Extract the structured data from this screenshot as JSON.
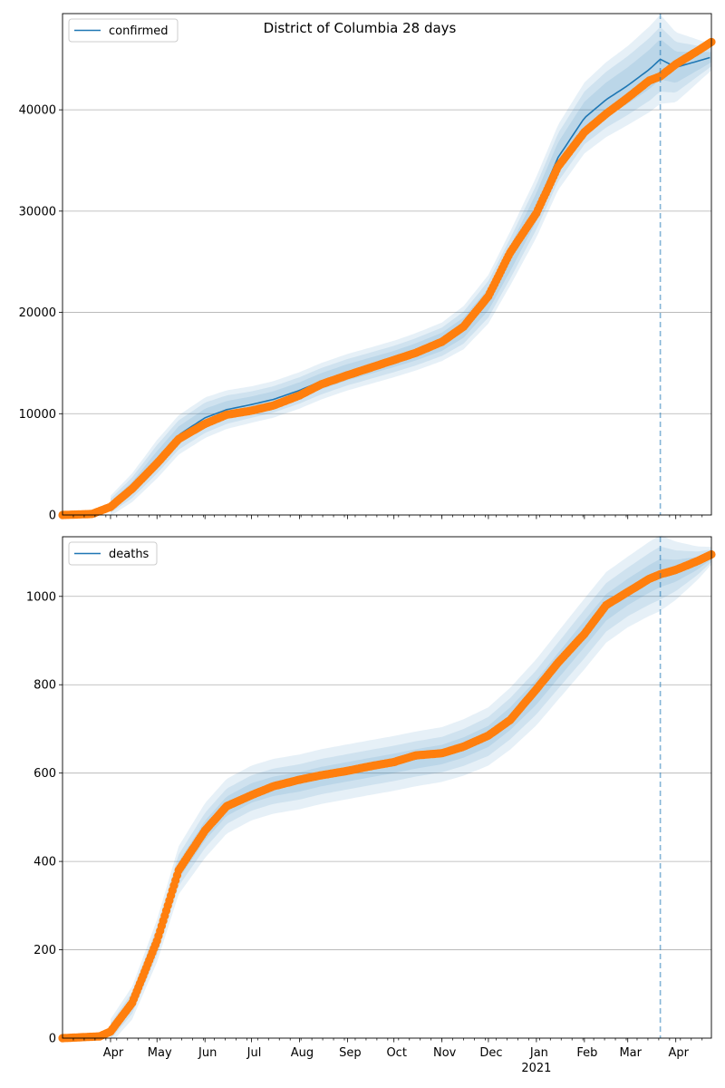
{
  "colors": {
    "model": "#1f77b4",
    "observed": "#ff7f0e",
    "grid": "#b0b0b0",
    "band": "#1f77b4"
  },
  "chart_data": [
    {
      "type": "line",
      "title": "District of Columbia 28 days",
      "legend": "confirmed",
      "legend_position": "top-left",
      "grid": "horizontal",
      "ylim": [
        0,
        49500
      ],
      "yticks": [
        0,
        10000,
        20000,
        30000,
        40000
      ],
      "xlim": [
        "2020-03-01",
        "2021-04-24"
      ],
      "forecast_start": "2021-03-22",
      "series": [
        {
          "role": "model",
          "x": [
            "2020-03-01",
            "2020-03-20",
            "2020-04-01",
            "2020-04-15",
            "2020-05-01",
            "2020-05-15",
            "2020-06-01",
            "2020-06-15",
            "2020-07-01",
            "2020-07-15",
            "2020-08-01",
            "2020-08-15",
            "2020-09-01",
            "2020-09-15",
            "2020-10-01",
            "2020-10-15",
            "2020-11-01",
            "2020-11-15",
            "2020-12-01",
            "2020-12-15",
            "2021-01-01",
            "2021-01-15",
            "2021-02-01",
            "2021-02-15",
            "2021-03-01",
            "2021-03-15",
            "2021-03-22",
            "2021-04-01",
            "2021-04-15",
            "2021-04-24"
          ],
          "y": [
            0,
            100,
            900,
            2700,
            5500,
            7900,
            9600,
            10400,
            10900,
            11400,
            12300,
            13200,
            14100,
            14700,
            15400,
            16100,
            17100,
            18500,
            21300,
            25300,
            30400,
            35300,
            39200,
            41000,
            42400,
            44000,
            45000,
            44200,
            44800,
            45200
          ]
        },
        {
          "role": "band",
          "x": [
            "2020-04-01",
            "2020-05-01",
            "2020-06-01",
            "2020-07-01",
            "2020-08-01",
            "2020-09-01",
            "2020-10-01",
            "2020-11-01",
            "2020-12-01",
            "2021-01-01",
            "2021-02-01",
            "2021-03-01",
            "2021-03-22",
            "2021-04-24"
          ],
          "inner": [
            400,
            800,
            900,
            800,
            800,
            800,
            800,
            900,
            1100,
            1400,
            1600,
            1800,
            2000,
            500
          ],
          "mid": [
            700,
            1400,
            1500,
            1300,
            1300,
            1300,
            1300,
            1400,
            1800,
            2200,
            2600,
            2900,
            3200,
            900
          ],
          "outer": [
            1000,
            1900,
            2000,
            1800,
            1800,
            1800,
            1800,
            1900,
            2400,
            3000,
            3500,
            3900,
            4400,
            1300
          ]
        },
        {
          "role": "observed",
          "x": [
            "2020-03-01",
            "2020-03-20",
            "2020-04-01",
            "2020-04-15",
            "2020-05-01",
            "2020-05-15",
            "2020-06-01",
            "2020-06-15",
            "2020-07-01",
            "2020-07-15",
            "2020-08-01",
            "2020-08-15",
            "2020-09-01",
            "2020-09-15",
            "2020-10-01",
            "2020-10-15",
            "2020-11-01",
            "2020-11-15",
            "2020-12-01",
            "2020-12-15",
            "2021-01-01",
            "2021-01-15",
            "2021-02-01",
            "2021-02-15",
            "2021-03-01",
            "2021-03-15",
            "2021-03-22",
            "2021-04-01",
            "2021-04-15",
            "2021-04-24"
          ],
          "y": [
            0,
            100,
            800,
            2600,
            5100,
            7500,
            9000,
            9900,
            10300,
            10800,
            11800,
            12900,
            13800,
            14500,
            15300,
            16000,
            17100,
            18600,
            21600,
            25900,
            29800,
            34400,
            37800,
            39600,
            41200,
            42900,
            43300,
            44500,
            45800,
            46700
          ]
        }
      ]
    },
    {
      "type": "line",
      "legend": "deaths",
      "legend_position": "top-left",
      "grid": "horizontal",
      "ylim": [
        0,
        1135
      ],
      "yticks": [
        0,
        200,
        400,
        600,
        800,
        1000
      ],
      "xlim": [
        "2020-03-01",
        "2021-04-24"
      ],
      "forecast_start": "2021-03-22",
      "x_ticks": [
        {
          "date": "2020-04-01",
          "label": "Apr"
        },
        {
          "date": "2020-05-01",
          "label": "May"
        },
        {
          "date": "2020-06-01",
          "label": "Jun"
        },
        {
          "date": "2020-07-01",
          "label": "Jul"
        },
        {
          "date": "2020-08-01",
          "label": "Aug"
        },
        {
          "date": "2020-09-01",
          "label": "Sep"
        },
        {
          "date": "2020-10-01",
          "label": "Oct"
        },
        {
          "date": "2020-11-01",
          "label": "Nov"
        },
        {
          "date": "2020-12-01",
          "label": "Dec"
        },
        {
          "date": "2021-01-01",
          "label": "Jan"
        },
        {
          "date": "2021-02-01",
          "label": "Feb"
        },
        {
          "date": "2021-03-01",
          "label": "Mar"
        },
        {
          "date": "2021-04-01",
          "label": "Apr"
        }
      ],
      "year_label": "2021",
      "series": [
        {
          "role": "model",
          "x": [
            "2020-03-01",
            "2020-03-25",
            "2020-04-01",
            "2020-04-15",
            "2020-05-01",
            "2020-05-15",
            "2020-06-01",
            "2020-06-15",
            "2020-07-01",
            "2020-07-15",
            "2020-08-01",
            "2020-08-15",
            "2020-09-01",
            "2020-09-15",
            "2020-10-01",
            "2020-10-15",
            "2020-11-01",
            "2020-11-15",
            "2020-12-01",
            "2020-12-15",
            "2021-01-01",
            "2021-01-15",
            "2021-02-01",
            "2021-02-15",
            "2021-03-01",
            "2021-03-15",
            "2021-03-22",
            "2021-04-01",
            "2021-04-15",
            "2021-04-24"
          ],
          "y": [
            0,
            5,
            15,
            80,
            220,
            380,
            470,
            525,
            555,
            570,
            580,
            592,
            603,
            612,
            622,
            632,
            642,
            658,
            683,
            723,
            783,
            843,
            915,
            975,
            1010,
            1040,
            1053,
            1058,
            1075,
            1092
          ]
        },
        {
          "role": "band",
          "x": [
            "2020-04-01",
            "2020-05-01",
            "2020-06-01",
            "2020-07-01",
            "2020-08-01",
            "2020-09-01",
            "2020-10-01",
            "2020-11-01",
            "2020-12-01",
            "2021-01-01",
            "2021-02-01",
            "2021-03-01",
            "2021-03-22",
            "2021-04-24"
          ],
          "inner": [
            10,
            18,
            22,
            22,
            22,
            22,
            22,
            22,
            24,
            28,
            30,
            30,
            32,
            8
          ],
          "mid": [
            18,
            32,
            40,
            40,
            40,
            40,
            40,
            40,
            44,
            50,
            55,
            55,
            60,
            14
          ],
          "outer": [
            28,
            48,
            62,
            62,
            62,
            62,
            62,
            62,
            66,
            75,
            80,
            80,
            86,
            20
          ]
        },
        {
          "role": "observed",
          "x": [
            "2020-03-01",
            "2020-03-25",
            "2020-04-01",
            "2020-04-15",
            "2020-05-01",
            "2020-05-15",
            "2020-06-01",
            "2020-06-15",
            "2020-07-01",
            "2020-07-15",
            "2020-08-01",
            "2020-08-15",
            "2020-09-01",
            "2020-09-15",
            "2020-10-01",
            "2020-10-15",
            "2020-11-01",
            "2020-11-15",
            "2020-12-01",
            "2020-12-15",
            "2021-01-01",
            "2021-01-15",
            "2021-02-01",
            "2021-02-15",
            "2021-03-01",
            "2021-03-15",
            "2021-03-22",
            "2021-04-01",
            "2021-04-15",
            "2021-04-24"
          ],
          "y": [
            0,
            4,
            15,
            80,
            220,
            380,
            470,
            525,
            550,
            570,
            585,
            595,
            605,
            615,
            625,
            640,
            645,
            660,
            685,
            720,
            790,
            850,
            915,
            980,
            1010,
            1040,
            1050,
            1060,
            1080,
            1095
          ]
        }
      ]
    }
  ]
}
